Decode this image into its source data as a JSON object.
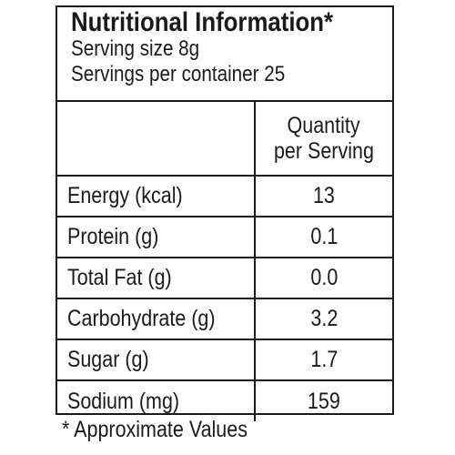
{
  "header": {
    "title": "Nutritional Information*",
    "serving_size": "Serving size 8g",
    "servings_per_container": "Servings per container 25"
  },
  "table": {
    "column_header_line1": "Quantity",
    "column_header_line2": "per Serving",
    "rows": [
      {
        "label": "Energy (kcal)",
        "value": "13"
      },
      {
        "label": "Protein (g)",
        "value": "0.1"
      },
      {
        "label": "Total Fat (g)",
        "value": "0.0"
      },
      {
        "label": "Carbohydrate (g)",
        "value": "3.2"
      },
      {
        "label": "Sugar (g)",
        "value": "1.7"
      },
      {
        "label": "Sodium (mg)",
        "value": "159"
      }
    ]
  },
  "footnote": "* Approximate Values"
}
